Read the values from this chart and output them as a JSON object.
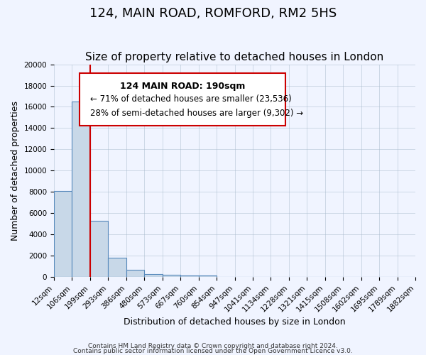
{
  "title": "124, MAIN ROAD, ROMFORD, RM2 5HS",
  "subtitle": "Size of property relative to detached houses in London",
  "xlabel": "Distribution of detached houses by size in London",
  "ylabel": "Number of detached properties",
  "bar_values": [
    8100,
    16500,
    5300,
    1800,
    700,
    300,
    200,
    150,
    150,
    0,
    0,
    0,
    0,
    0,
    0,
    0,
    0,
    0,
    0,
    0
  ],
  "bar_labels": [
    "12sqm",
    "106sqm",
    "199sqm",
    "293sqm",
    "386sqm",
    "480sqm",
    "573sqm",
    "667sqm",
    "760sqm",
    "854sqm",
    "947sqm",
    "1041sqm",
    "1134sqm",
    "1228sqm",
    "1321sqm",
    "1415sqm",
    "1508sqm",
    "1602sqm",
    "1695sqm",
    "1789sqm",
    "1882sqm"
  ],
  "bar_color": "#c8d8e8",
  "bar_edge_color": "#5588bb",
  "bar_edge_width": 0.8,
  "red_line_x": 2,
  "red_line_color": "#cc0000",
  "ylim": [
    0,
    20000
  ],
  "yticks": [
    0,
    2000,
    4000,
    6000,
    8000,
    10000,
    12000,
    14000,
    16000,
    18000,
    20000
  ],
  "annotation_title": "124 MAIN ROAD: 190sqm",
  "annotation_line1": "← 71% of detached houses are smaller (23,536)",
  "annotation_line2": "28% of semi-detached houses are larger (9,302) →",
  "annotation_box_color": "#ffffff",
  "annotation_box_edge": "#cc0000",
  "bg_color": "#f0f4ff",
  "footer_line1": "Contains HM Land Registry data © Crown copyright and database right 2024.",
  "footer_line2": "Contains public sector information licensed under the Open Government Licence v3.0.",
  "title_fontsize": 13,
  "subtitle_fontsize": 11,
  "axis_label_fontsize": 9,
  "tick_fontsize": 7.5
}
